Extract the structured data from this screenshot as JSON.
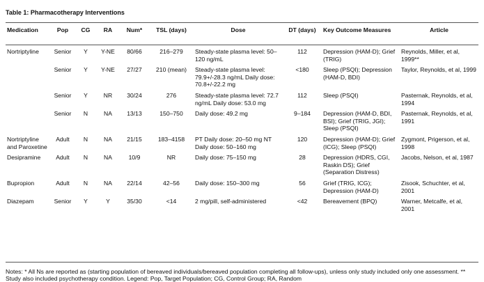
{
  "title": "Table 1: Pharmacotherapy Interventions",
  "columns": [
    "Medication",
    "Pop",
    "CG",
    "RA",
    "Num*",
    "TSL (days)",
    "Dose",
    "DT (days)",
    "Key Outcome Measures",
    "Article"
  ],
  "rows": [
    {
      "medication": "Nortriptyline",
      "pop": "Senior",
      "cg": "Y",
      "ra": "Y-NE",
      "num": "80/66",
      "tsl": "216–279",
      "dose": "Steady-state plasma level: 50–120 ng/mL",
      "dt": "112",
      "outcome": "Depression (HAM-D); Grief (TRIG)",
      "article": "Reynolds, Miller, et al, 1999**"
    },
    {
      "medication": "",
      "pop": "Senior",
      "cg": "Y",
      "ra": "Y-NE",
      "num": "27/27",
      "tsl": "210 (mean)",
      "dose": "Steady-state plasma level: 79.9+/-28.3 ng/mL Daily dose: 70.8+/-22.2 mg",
      "dt": "<180",
      "outcome": "Sleep (PSQI); Depression (HAM-D, BDI)",
      "article": "Taylor, Reynolds, et al, 1999"
    },
    {
      "medication": "",
      "pop": "Senior",
      "cg": "Y",
      "ra": "NR",
      "num": "30/24",
      "tsl": "276",
      "dose": "Steady-state plasma level: 72.7 ng/mL Daily dose: 53.0 mg",
      "dt": "112",
      "outcome": "Sleep (PSQI)",
      "article": "Pasternak, Reynolds, et al, 1994"
    },
    {
      "medication": "",
      "pop": "Senior",
      "cg": "N",
      "ra": "NA",
      "num": "13/13",
      "tsl": "150–750",
      "dose": "Daily dose: 49.2 mg",
      "dt": "9–184",
      "outcome": "Depression (HAM-D, BDI, BSI); Grief (TRIG, JGI); Sleep (PSQI)",
      "article": "Pasternak, Reynolds, et al, 1991"
    },
    {
      "medication": "Nortriptyline and Paroxetine",
      "pop": "Adult",
      "cg": "N",
      "ra": "NA",
      "num": "21/15",
      "tsl": "183–4158",
      "dose": "PT Daily dose: 20–50 mg NT Daily dose: 50–160 mg",
      "dt": "120",
      "outcome": "Depression (HAM-D); Grief (ICG); Sleep (PSQI)",
      "article": "Zygmont, Prigerson, et al, 1998"
    },
    {
      "medication": "Desipramine",
      "pop": "Adult",
      "cg": "N",
      "ra": "NA",
      "num": "10/9",
      "tsl": "NR",
      "dose": "Daily dose: 75–150 mg",
      "dt": "28",
      "outcome": "Depression (HDRS, CGI, Raskin DS); Grief (Separation Distress)",
      "article": "Jacobs, Nelson, et al, 1987"
    },
    {
      "medication": "Bupropion",
      "pop": "Adult",
      "cg": "N",
      "ra": "NA",
      "num": "22/14",
      "tsl": "42–56",
      "dose": "Daily dose: 150–300 mg",
      "dt": "56",
      "outcome": "Grief (TRIG, ICG); Depression (HAM-D)",
      "article": "Zisook, Schuchter, et al, 2001"
    },
    {
      "medication": "Diazepam",
      "pop": "Senior",
      "cg": "Y",
      "ra": "Y",
      "num": "35/30",
      "tsl": "<14",
      "dose": "2 mg/pill, self-administered",
      "dt": "<42",
      "outcome": "Bereavement (BPQ)",
      "article": "Warner, Metcalfe, et al, 2001"
    }
  ],
  "notes": "Notes: * All Ns are reported as (starting population of bereaved individuals/bereaved population completing all follow-ups), unless only study included only one assessment. ** Study also included psychotherapy condition. Legend: Pop, Target Population; CG, Control Group; RA, Random"
}
